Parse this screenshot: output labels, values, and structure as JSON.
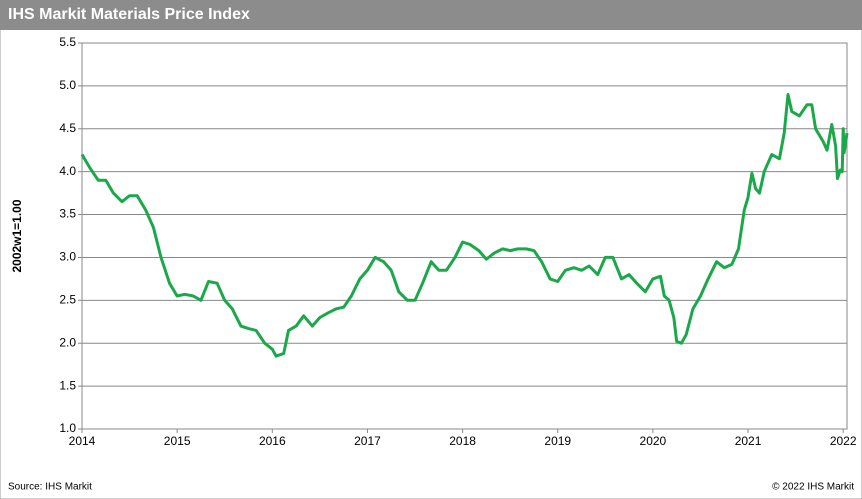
{
  "chart_data": {
    "type": "line",
    "title": "IHS Markit Materials Price Index",
    "y_label": "2002w1=1.00",
    "source": "Source: IHS Markit",
    "copyright": "© 2022 IHS Markit",
    "xlim": [
      2014,
      2022.04
    ],
    "xticks": [
      2014,
      2015,
      2016,
      2017,
      2018,
      2019,
      2020,
      2021,
      2022
    ],
    "ylim": [
      1,
      5.5
    ],
    "yticks": [
      {
        "value": 1,
        "label": "1.0"
      },
      1.5,
      {
        "value": 2,
        "label": "2.0"
      },
      2.5,
      {
        "value": 3,
        "label": "3.0"
      },
      3.5,
      {
        "value": 4,
        "label": "4.0"
      },
      4.5,
      {
        "value": 5,
        "label": "5.0"
      },
      5.5
    ],
    "grid": true,
    "series": [
      {
        "color": "#1aa84a",
        "x": [
          2014,
          2014.08,
          2014.17,
          2014.25,
          2014.33,
          2014.42,
          2014.5,
          2014.58,
          2014.67,
          2014.75,
          2014.83,
          2014.92,
          2015,
          2015.08,
          2015.17,
          2015.25,
          2015.33,
          2015.42,
          2015.5,
          2015.58,
          2015.67,
          2015.75,
          2015.83,
          2015.92,
          2016,
          2016.04,
          2016.12,
          2016.17,
          2016.25,
          2016.33,
          2016.42,
          2016.5,
          2016.58,
          2016.67,
          2016.75,
          2016.83,
          2016.92,
          2017,
          2017.08,
          2017.17,
          2017.25,
          2017.33,
          2017.42,
          2017.5,
          2017.58,
          2017.67,
          2017.75,
          2017.83,
          2017.92,
          2018,
          2018.08,
          2018.17,
          2018.25,
          2018.33,
          2018.42,
          2018.5,
          2018.58,
          2018.67,
          2018.75,
          2018.83,
          2018.92,
          2019,
          2019.08,
          2019.17,
          2019.25,
          2019.33,
          2019.42,
          2019.5,
          2019.58,
          2019.67,
          2019.75,
          2019.83,
          2019.92,
          2020,
          2020.08,
          2020.12,
          2020.17,
          2020.22,
          2020.25,
          2020.3,
          2020.35,
          2020.42,
          2020.5,
          2020.58,
          2020.67,
          2020.75,
          2020.83,
          2020.9,
          2020.96,
          2021,
          2021.04,
          2021.08,
          2021.12,
          2021.17,
          2021.25,
          2021.33,
          2021.38,
          2021.42,
          2021.46,
          2021.54,
          2021.62,
          2021.67,
          2021.71,
          2021.79,
          2021.83,
          2021.88,
          2021.92,
          2021.94,
          2021.97,
          2021.99,
          2022,
          2022.01,
          2022.04
        ],
        "values": [
          4.2,
          4.05,
          3.9,
          3.9,
          3.75,
          3.65,
          3.72,
          3.72,
          3.55,
          3.35,
          3.0,
          2.7,
          2.55,
          2.57,
          2.55,
          2.5,
          2.72,
          2.7,
          2.5,
          2.4,
          2.2,
          2.17,
          2.15,
          2.0,
          1.93,
          1.85,
          1.88,
          2.15,
          2.2,
          2.32,
          2.2,
          2.3,
          2.35,
          2.4,
          2.42,
          2.55,
          2.75,
          2.85,
          3.0,
          2.95,
          2.85,
          2.6,
          2.5,
          2.5,
          2.7,
          2.95,
          2.85,
          2.85,
          3.0,
          3.18,
          3.15,
          3.08,
          2.98,
          3.05,
          3.1,
          3.08,
          3.1,
          3.1,
          3.08,
          2.95,
          2.75,
          2.72,
          2.85,
          2.88,
          2.85,
          2.9,
          2.8,
          3.0,
          3.0,
          2.75,
          2.8,
          2.7,
          2.6,
          2.75,
          2.78,
          2.55,
          2.5,
          2.3,
          2.02,
          2.0,
          2.1,
          2.4,
          2.55,
          2.75,
          2.95,
          2.88,
          2.92,
          3.1,
          3.55,
          3.7,
          3.98,
          3.8,
          3.75,
          4.0,
          4.2,
          4.15,
          4.45,
          4.9,
          4.7,
          4.65,
          4.78,
          4.78,
          4.5,
          4.35,
          4.25,
          4.55,
          4.3,
          3.92,
          4.02,
          4.0,
          4.5,
          4.22,
          4.45
        ]
      }
    ]
  }
}
